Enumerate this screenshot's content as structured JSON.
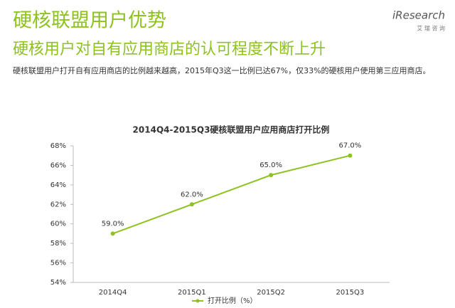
{
  "header": {
    "title": "硬核联盟用户优势",
    "subtitle": "硬核用户对自有应用商店的认可程度不断上升",
    "description": "硬核联盟用户打开自有应用商店的比例越来越高，2015年Q3这一比例已达67%，仅33%的硬核用户使用第三应用商店。"
  },
  "logo": {
    "name": "iResearch",
    "tagline": "艾 瑞 咨 询"
  },
  "chart_data": {
    "type": "line",
    "title": "2014Q4-2015Q3硬核联盟用户应用商店打开比例",
    "categories": [
      "2014Q4",
      "2015Q1",
      "2015Q2",
      "2015Q3"
    ],
    "series": [
      {
        "name": "打开比例（%）",
        "color": "#8dc21f",
        "values": [
          59,
          62,
          65,
          67
        ],
        "value_labels": [
          "59.0%",
          "62.0%",
          "65.0%",
          "67.0%"
        ]
      }
    ],
    "ylim": [
      54,
      68
    ],
    "yticks": [
      {
        "value": 54,
        "label": "54%"
      },
      {
        "value": 56,
        "label": "56%"
      },
      {
        "value": 58,
        "label": "58%"
      },
      {
        "value": 60,
        "label": "60%"
      },
      {
        "value": 62,
        "label": "62%"
      },
      {
        "value": 64,
        "label": "64%"
      },
      {
        "value": 66,
        "label": "66%"
      },
      {
        "value": 68,
        "label": "68%"
      }
    ],
    "grid": false
  }
}
